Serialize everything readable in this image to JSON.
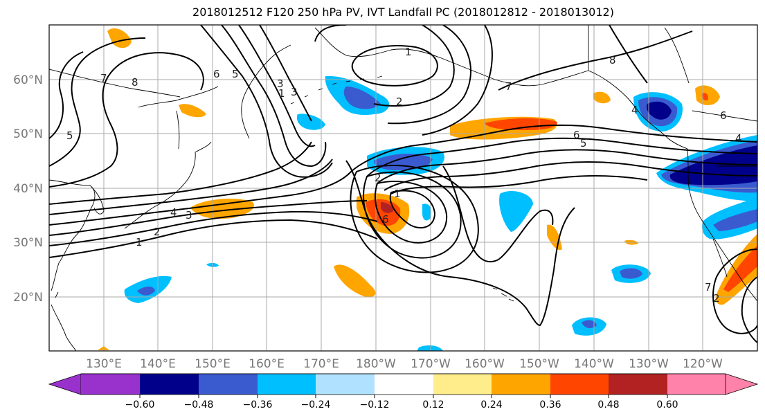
{
  "title": "2018012512 F120 250 hPa PV, IVT Landfall PC (2018012812 - 2018013012)",
  "map": {
    "lon_ticks": [
      "130°E",
      "140°E",
      "150°E",
      "160°E",
      "170°E",
      "180°W",
      "170°W",
      "160°W",
      "150°W",
      "140°W",
      "130°W",
      "120°W"
    ],
    "lat_ticks": [
      "60°N",
      "50°N",
      "40°N",
      "30°N",
      "20°N"
    ],
    "contour_labels": [
      "1",
      "2",
      "3",
      "4",
      "5",
      "6",
      "7",
      "8",
      "2",
      "6",
      "8",
      "1",
      "7",
      "6",
      "5",
      "4",
      "3",
      "2",
      "1",
      "3",
      "4",
      "5",
      "6",
      "1",
      "7",
      "2"
    ]
  },
  "colorbar": {
    "ticks": [
      "−0.60",
      "−0.48",
      "−0.36",
      "−0.24",
      "−0.12",
      "0.12",
      "0.24",
      "0.36",
      "0.48",
      "0.60"
    ],
    "colors": [
      "#9932cc",
      "#00008b",
      "#3a5bd0",
      "#00bfff",
      "#b0e2ff",
      "#ffffff",
      "#ffec8b",
      "#ffa500",
      "#ff4500",
      "#b22222",
      "#ff82ab"
    ]
  },
  "chart_data": {
    "type": "heatmap",
    "title": "2018012512 F120 250 hPa PV, IVT Landfall PC (2018012812 - 2018013012)",
    "xlabel": "",
    "ylabel": "",
    "lon_range": [
      "120°E",
      "110°W"
    ],
    "lat_range": [
      10,
      70
    ],
    "grid": true,
    "contour_levels": [
      1,
      2,
      3,
      4,
      5,
      6,
      7,
      8
    ],
    "colorbar_levels": [
      -0.6,
      -0.48,
      -0.36,
      -0.24,
      -0.12,
      0.12,
      0.24,
      0.36,
      0.48,
      0.6
    ],
    "colorbar_extend": "both"
  }
}
